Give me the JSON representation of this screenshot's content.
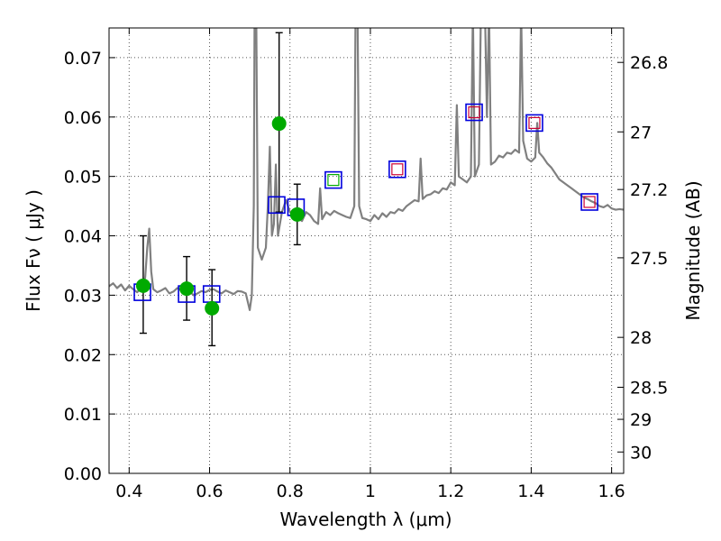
{
  "chart_data": {
    "type": "scatter",
    "xlabel": "Wavelength  λ (μm)",
    "ylabel": "Flux  Fν  ( μJy )",
    "y2label": "Magnitude (AB)",
    "xlim": [
      0.35,
      1.63
    ],
    "ylim": [
      0.0,
      0.075
    ],
    "grid": true,
    "x_ticks": [
      0.4,
      0.6,
      0.8,
      1.0,
      1.2,
      1.4,
      1.6
    ],
    "x_tick_labels": [
      "0.4",
      "0.6",
      "0.8",
      "1",
      "1.2",
      "1.4",
      "1.6"
    ],
    "y_ticks": [
      0.0,
      0.01,
      0.02,
      0.03,
      0.04,
      0.05,
      0.06,
      0.07
    ],
    "y_tick_labels": [
      "0.00",
      "0.01",
      "0.02",
      "0.03",
      "0.04",
      "0.05",
      "0.06",
      "0.07"
    ],
    "y2_ticks": [
      {
        "label": "26.8",
        "flux": 0.0692
      },
      {
        "label": "27",
        "flux": 0.0575
      },
      {
        "label": "27.2",
        "flux": 0.0478
      },
      {
        "label": "27.5",
        "flux": 0.0363
      },
      {
        "label": "28",
        "flux": 0.0229
      },
      {
        "label": "28.5",
        "flux": 0.0145
      },
      {
        "label": "29",
        "flux": 0.0091
      },
      {
        "label": "30",
        "flux": 0.0036
      }
    ],
    "colors": {
      "spectrum": "#808080",
      "observed": "#00aa00",
      "model_box": "#0000dd",
      "model_box_small_red": "#cc0033",
      "model_box_small_green": "#00aa00",
      "errorbar": "#000000",
      "grid": "#555555"
    },
    "series": [
      {
        "name": "model spectrum",
        "kind": "line",
        "points": [
          [
            0.35,
            0.0315
          ],
          [
            0.36,
            0.032
          ],
          [
            0.37,
            0.0312
          ],
          [
            0.38,
            0.0318
          ],
          [
            0.39,
            0.0308
          ],
          [
            0.4,
            0.0316
          ],
          [
            0.41,
            0.031
          ],
          [
            0.42,
            0.0305
          ],
          [
            0.43,
            0.0312
          ],
          [
            0.44,
            0.033
          ],
          [
            0.445,
            0.038
          ],
          [
            0.45,
            0.0412
          ],
          [
            0.455,
            0.034
          ],
          [
            0.46,
            0.031
          ],
          [
            0.47,
            0.0305
          ],
          [
            0.48,
            0.0308
          ],
          [
            0.49,
            0.0312
          ],
          [
            0.5,
            0.0303
          ],
          [
            0.51,
            0.0306
          ],
          [
            0.52,
            0.0312
          ],
          [
            0.53,
            0.0308
          ],
          [
            0.54,
            0.0302
          ],
          [
            0.55,
            0.0307
          ],
          [
            0.56,
            0.03
          ],
          [
            0.57,
            0.0303
          ],
          [
            0.58,
            0.0307
          ],
          [
            0.59,
            0.0305
          ],
          [
            0.6,
            0.0309
          ],
          [
            0.61,
            0.031
          ],
          [
            0.62,
            0.0306
          ],
          [
            0.63,
            0.0303
          ],
          [
            0.64,
            0.0308
          ],
          [
            0.65,
            0.0305
          ],
          [
            0.66,
            0.0302
          ],
          [
            0.67,
            0.0307
          ],
          [
            0.68,
            0.0306
          ],
          [
            0.69,
            0.0303
          ],
          [
            0.7,
            0.0275
          ],
          [
            0.705,
            0.03
          ],
          [
            0.71,
            0.045
          ],
          [
            0.712,
            0.078
          ],
          [
            0.716,
            0.078
          ],
          [
            0.72,
            0.038
          ],
          [
            0.73,
            0.036
          ],
          [
            0.74,
            0.038
          ],
          [
            0.745,
            0.045
          ],
          [
            0.75,
            0.055
          ],
          [
            0.755,
            0.04
          ],
          [
            0.76,
            0.042
          ],
          [
            0.765,
            0.052
          ],
          [
            0.77,
            0.04
          ],
          [
            0.78,
            0.044
          ],
          [
            0.79,
            0.046
          ],
          [
            0.8,
            0.044
          ],
          [
            0.81,
            0.0435
          ],
          [
            0.82,
            0.043
          ],
          [
            0.83,
            0.0425
          ],
          [
            0.84,
            0.044
          ],
          [
            0.85,
            0.0435
          ],
          [
            0.86,
            0.0425
          ],
          [
            0.87,
            0.042
          ],
          [
            0.875,
            0.048
          ],
          [
            0.88,
            0.0428
          ],
          [
            0.89,
            0.044
          ],
          [
            0.9,
            0.0435
          ],
          [
            0.91,
            0.0442
          ],
          [
            0.92,
            0.0438
          ],
          [
            0.93,
            0.0435
          ],
          [
            0.94,
            0.0432
          ],
          [
            0.95,
            0.043
          ],
          [
            0.96,
            0.045
          ],
          [
            0.963,
            0.078
          ],
          [
            0.968,
            0.078
          ],
          [
            0.972,
            0.045
          ],
          [
            0.98,
            0.043
          ],
          [
            0.99,
            0.0428
          ],
          [
            1.0,
            0.0425
          ],
          [
            1.01,
            0.0435
          ],
          [
            1.02,
            0.0428
          ],
          [
            1.03,
            0.0438
          ],
          [
            1.04,
            0.0432
          ],
          [
            1.05,
            0.044
          ],
          [
            1.06,
            0.0438
          ],
          [
            1.07,
            0.0445
          ],
          [
            1.08,
            0.0442
          ],
          [
            1.09,
            0.045
          ],
          [
            1.1,
            0.0455
          ],
          [
            1.11,
            0.046
          ],
          [
            1.12,
            0.0458
          ],
          [
            1.125,
            0.053
          ],
          [
            1.13,
            0.0462
          ],
          [
            1.14,
            0.0468
          ],
          [
            1.15,
            0.047
          ],
          [
            1.16,
            0.0475
          ],
          [
            1.17,
            0.0472
          ],
          [
            1.18,
            0.048
          ],
          [
            1.19,
            0.0478
          ],
          [
            1.2,
            0.049
          ],
          [
            1.21,
            0.0485
          ],
          [
            1.215,
            0.062
          ],
          [
            1.22,
            0.05
          ],
          [
            1.23,
            0.0495
          ],
          [
            1.24,
            0.049
          ],
          [
            1.25,
            0.05
          ],
          [
            1.255,
            0.078
          ],
          [
            1.26,
            0.05
          ],
          [
            1.27,
            0.052
          ],
          [
            1.275,
            0.078
          ],
          [
            1.285,
            0.078
          ],
          [
            1.29,
            0.06
          ],
          [
            1.295,
            0.078
          ],
          [
            1.3,
            0.052
          ],
          [
            1.31,
            0.0525
          ],
          [
            1.32,
            0.0535
          ],
          [
            1.33,
            0.0532
          ],
          [
            1.34,
            0.054
          ],
          [
            1.35,
            0.0538
          ],
          [
            1.36,
            0.0545
          ],
          [
            1.37,
            0.054
          ],
          [
            1.375,
            0.078
          ],
          [
            1.38,
            0.056
          ],
          [
            1.39,
            0.053
          ],
          [
            1.4,
            0.0525
          ],
          [
            1.41,
            0.0532
          ],
          [
            1.415,
            0.059
          ],
          [
            1.42,
            0.054
          ],
          [
            1.43,
            0.0532
          ],
          [
            1.44,
            0.0522
          ],
          [
            1.45,
            0.0515
          ],
          [
            1.46,
            0.0505
          ],
          [
            1.47,
            0.0495
          ],
          [
            1.48,
            0.049
          ],
          [
            1.49,
            0.0485
          ],
          [
            1.5,
            0.048
          ],
          [
            1.51,
            0.0475
          ],
          [
            1.52,
            0.047
          ],
          [
            1.53,
            0.0465
          ],
          [
            1.54,
            0.0462
          ],
          [
            1.55,
            0.0458
          ],
          [
            1.56,
            0.0455
          ],
          [
            1.57,
            0.045
          ],
          [
            1.58,
            0.0448
          ],
          [
            1.59,
            0.0452
          ],
          [
            1.6,
            0.0446
          ],
          [
            1.61,
            0.0444
          ],
          [
            1.62,
            0.0445
          ],
          [
            1.63,
            0.0444
          ]
        ]
      },
      {
        "name": "model photometry",
        "kind": "box",
        "points": [
          {
            "x": 0.433,
            "y": 0.0305
          },
          {
            "x": 0.543,
            "y": 0.0302
          },
          {
            "x": 0.605,
            "y": 0.0302
          },
          {
            "x": 0.767,
            "y": 0.0452
          },
          {
            "x": 0.815,
            "y": 0.0448
          },
          {
            "x": 0.908,
            "y": 0.0494,
            "inner": "green"
          },
          {
            "x": 1.067,
            "y": 0.0512,
            "inner": "red"
          },
          {
            "x": 1.258,
            "y": 0.0608,
            "inner": "red"
          },
          {
            "x": 1.408,
            "y": 0.059,
            "inner": "red"
          },
          {
            "x": 1.545,
            "y": 0.0457,
            "inner": "red"
          }
        ]
      },
      {
        "name": "observed photometry",
        "kind": "errorbar",
        "points": [
          {
            "x": 0.435,
            "y": 0.0316,
            "lo": 0.0236,
            "hi": 0.04
          },
          {
            "x": 0.543,
            "y": 0.0311,
            "lo": 0.0258,
            "hi": 0.0365
          },
          {
            "x": 0.606,
            "y": 0.0278,
            "lo": 0.0215,
            "hi": 0.0343
          },
          {
            "x": 0.773,
            "y": 0.0589,
            "lo": 0.044,
            "hi": 0.0742
          },
          {
            "x": 0.818,
            "y": 0.0436,
            "lo": 0.0385,
            "hi": 0.0487
          }
        ]
      }
    ]
  }
}
